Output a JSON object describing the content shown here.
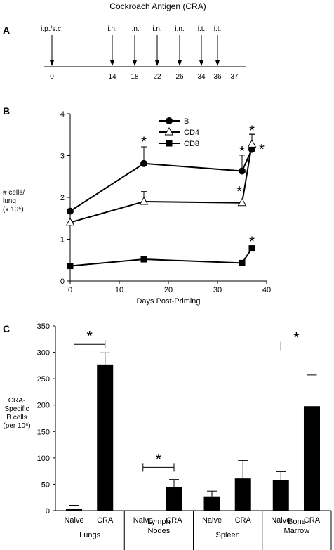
{
  "panels": {
    "A": {
      "letter": "A",
      "title": "Cockroach Antigen (CRA)",
      "events": [
        {
          "day": 0,
          "label": "i.p./s.c."
        },
        {
          "day": 14,
          "label": "i.n."
        },
        {
          "day": 18,
          "label": "i.n."
        },
        {
          "day": 22,
          "label": "i.n."
        },
        {
          "day": 26,
          "label": "i.n."
        },
        {
          "day": 34,
          "label": "i.t."
        },
        {
          "day": 36,
          "label": "i.t."
        }
      ],
      "ticks": [
        "0",
        "14",
        "18",
        "22",
        "26",
        "34",
        "36",
        "37"
      ]
    },
    "B": {
      "letter": "B"
    },
    "C": {
      "letter": "C"
    }
  },
  "chart_data": [
    {
      "panel": "B",
      "type": "line",
      "xlabel": "Days Post-Priming",
      "ylabel": [
        "# cells/",
        "lung",
        "(x 10⁶)"
      ],
      "xlim": [
        0,
        40
      ],
      "ylim": [
        0,
        4
      ],
      "xticks": [
        0,
        10,
        20,
        30,
        40
      ],
      "yticks": [
        0,
        1,
        2,
        3,
        4
      ],
      "legend_position": "top-center",
      "series": [
        {
          "name": "B",
          "marker": "circle-filled",
          "x": [
            0,
            15,
            35,
            37
          ],
          "y": [
            1.67,
            2.81,
            2.63,
            3.15
          ],
          "err": [
            0,
            0.4,
            0.38,
            0.36
          ],
          "sig": [
            false,
            true,
            true,
            false
          ]
        },
        {
          "name": "CD4",
          "marker": "triangle-open",
          "x": [
            0,
            15,
            35,
            37
          ],
          "y": [
            1.4,
            1.9,
            1.87,
            3.27
          ],
          "err": [
            0,
            0.24,
            0,
            0.24
          ],
          "sig": [
            false,
            false,
            true,
            true
          ]
        },
        {
          "name": "CD8",
          "marker": "square-filled",
          "x": [
            0,
            15,
            35,
            37
          ],
          "y": [
            0.36,
            0.52,
            0.43,
            0.78
          ],
          "err": [
            0,
            0,
            0,
            0
          ],
          "sig": [
            false,
            false,
            false,
            true
          ]
        }
      ],
      "star_label": "*"
    },
    {
      "panel": "C",
      "type": "bar",
      "ylabel": [
        "CRA-",
        "Specific",
        "B cells",
        "(per 10⁶)"
      ],
      "ylim": [
        0,
        350
      ],
      "yticks": [
        0,
        50,
        100,
        150,
        200,
        250,
        300,
        350
      ],
      "groups": [
        {
          "name": [
            "Lungs"
          ],
          "bars": [
            {
              "label": "Naive",
              "value": 4,
              "err": 6
            },
            {
              "label": "CRA",
              "value": 277,
              "err": 22
            }
          ]
        },
        {
          "name": [
            "Lymph",
            "Nodes"
          ],
          "bars": [
            {
              "label": "Naive",
              "value": 0,
              "err": 0
            },
            {
              "label": "CRA",
              "value": 45,
              "err": 14
            }
          ]
        },
        {
          "name": [
            "Spleen"
          ],
          "bars": [
            {
              "label": "Naive",
              "value": 27,
              "err": 10
            },
            {
              "label": "CRA",
              "value": 61,
              "err": 34
            }
          ]
        },
        {
          "name": [
            "Bone",
            "Marrow"
          ],
          "bars": [
            {
              "label": "Naive",
              "value": 58,
              "err": 16
            },
            {
              "label": "CRA",
              "value": 198,
              "err": 59
            }
          ]
        }
      ],
      "significance": [
        {
          "group": 0,
          "label": "*",
          "y": 315
        },
        {
          "group": 1,
          "label": "*",
          "y": 82
        },
        {
          "group": 3,
          "label": "*",
          "y": 312
        }
      ]
    }
  ]
}
